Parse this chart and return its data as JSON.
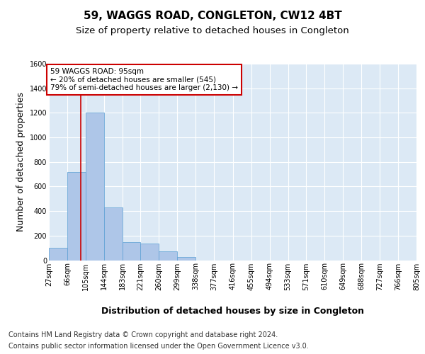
{
  "title": "59, WAGGS ROAD, CONGLETON, CW12 4BT",
  "subtitle": "Size of property relative to detached houses in Congleton",
  "xlabel": "Distribution of detached houses by size in Congleton",
  "ylabel": "Number of detached properties",
  "bin_labels": [
    "27sqm",
    "66sqm",
    "105sqm",
    "144sqm",
    "183sqm",
    "221sqm",
    "260sqm",
    "299sqm",
    "338sqm",
    "377sqm",
    "416sqm",
    "455sqm",
    "494sqm",
    "533sqm",
    "571sqm",
    "610sqm",
    "649sqm",
    "688sqm",
    "727sqm",
    "766sqm",
    "805sqm"
  ],
  "bar_heights": [
    100,
    720,
    1200,
    430,
    145,
    135,
    70,
    25,
    0,
    0,
    0,
    0,
    0,
    0,
    0,
    0,
    0,
    0,
    0,
    0
  ],
  "bar_color": "#aec6e8",
  "bar_edge_color": "#5a9fd4",
  "bin_edges": [
    27,
    66,
    105,
    144,
    183,
    221,
    260,
    299,
    338,
    377,
    416,
    455,
    494,
    533,
    571,
    610,
    649,
    688,
    727,
    766,
    805
  ],
  "property_size": 95,
  "annotation_box_text": "59 WAGGS ROAD: 95sqm\n← 20% of detached houses are smaller (545)\n79% of semi-detached houses are larger (2,130) →",
  "annotation_box_color": "#ffffff",
  "annotation_box_edge_color": "#cc0000",
  "vline_color": "#cc0000",
  "ylim": [
    0,
    1600
  ],
  "yticks": [
    0,
    200,
    400,
    600,
    800,
    1000,
    1200,
    1400,
    1600
  ],
  "footer_line1": "Contains HM Land Registry data © Crown copyright and database right 2024.",
  "footer_line2": "Contains public sector information licensed under the Open Government Licence v3.0.",
  "background_color": "#dce9f5",
  "title_fontsize": 11,
  "subtitle_fontsize": 9.5,
  "axis_label_fontsize": 9,
  "tick_fontsize": 7,
  "footer_fontsize": 7,
  "annotation_fontsize": 7.5
}
